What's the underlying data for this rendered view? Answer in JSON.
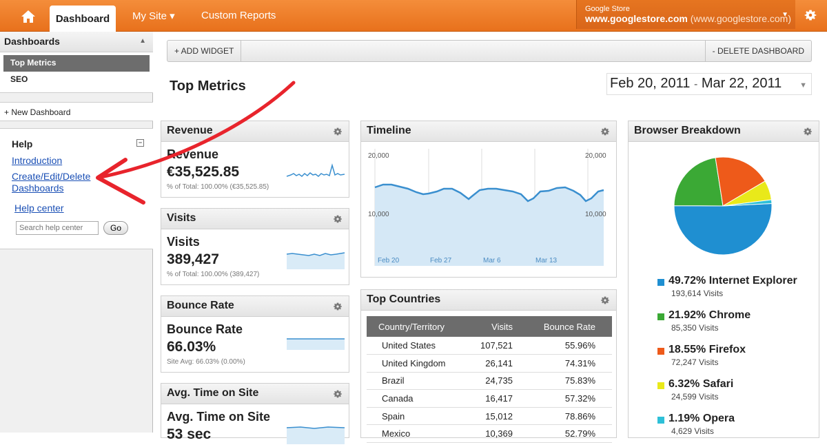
{
  "topbar": {
    "home_icon": "home-icon",
    "tabs": [
      {
        "label": "Dashboard"
      },
      {
        "label": "My Site ▾"
      },
      {
        "label": "Custom Reports"
      }
    ],
    "account": {
      "label": "Google Store",
      "name": "www.googlestore.com",
      "url": "(www.googlestore.com)"
    },
    "settings_icon": "gear-icon",
    "accent_color": "#ee7f2d"
  },
  "sidebar": {
    "title": "Dashboards",
    "items": [
      {
        "label": "Top Metrics"
      },
      {
        "label": "SEO"
      }
    ],
    "new_dashboard": "+ New Dashboard",
    "help": {
      "title": "Help",
      "links": [
        "Introduction",
        "Create/Edit/Delete Dashboards"
      ],
      "help_center": "Help center",
      "search_placeholder": "Search help center",
      "go": "Go"
    }
  },
  "toolbar": {
    "add": "+ ADD WIDGET",
    "delete": "- DELETE DASHBOARD"
  },
  "main": {
    "title": "Top Metrics",
    "date_start": "Feb 20, 2011",
    "date_sep": "-",
    "date_end": "Mar 22, 2011"
  },
  "widgets": {
    "revenue": {
      "title": "Revenue",
      "label": "Revenue",
      "value": "€35,525.85",
      "sub": "% of Total: 100.00% (€35,525.85)"
    },
    "visits": {
      "title": "Visits",
      "label": "Visits",
      "value": "389,427",
      "sub": "% of Total: 100.00% (389,427)"
    },
    "bounce": {
      "title": "Bounce Rate",
      "label": "Bounce Rate",
      "value": "66.03%",
      "sub": "Site Avg: 66.03% (0.00%)"
    },
    "avgtime": {
      "title": "Avg. Time on Site",
      "label": "Avg. Time on Site",
      "value": "53 sec"
    },
    "timeline": {
      "title": "Timeline",
      "y_labels": [
        "20,000",
        "10,000"
      ],
      "x_labels": [
        "Feb 20",
        "Feb 27",
        "Mar 6",
        "Mar 13"
      ],
      "line_color": "#3a8fcf"
    },
    "countries": {
      "title": "Top Countries",
      "columns": [
        "Country/Territory",
        "Visits",
        "Bounce Rate"
      ],
      "rows": [
        [
          "United States",
          "107,521",
          "55.96%"
        ],
        [
          "United Kingdom",
          "26,141",
          "74.31%"
        ],
        [
          "Brazil",
          "24,735",
          "75.83%"
        ],
        [
          "Canada",
          "16,417",
          "57.32%"
        ],
        [
          "Spain",
          "15,012",
          "78.86%"
        ],
        [
          "Mexico",
          "10,369",
          "52.79%"
        ]
      ]
    },
    "browser": {
      "title": "Browser Breakdown",
      "items": [
        {
          "pct": "49.72% Internet Explorer",
          "visits": "193,614 Visits",
          "share": 49.72,
          "color": "#1f8fd1"
        },
        {
          "pct": "21.92% Chrome",
          "visits": "85,350 Visits",
          "share": 21.92,
          "color": "#3ba935"
        },
        {
          "pct": "18.55% Firefox",
          "visits": "72,247 Visits",
          "share": 18.55,
          "color": "#ee5a1a"
        },
        {
          "pct": "6.32% Safari",
          "visits": "24,599 Visits",
          "share": 6.32,
          "color": "#e9e91a"
        },
        {
          "pct": "1.19% Opera",
          "visits": "4,629 Visits",
          "share": 1.19,
          "color": "#2ec0d8"
        }
      ]
    }
  }
}
